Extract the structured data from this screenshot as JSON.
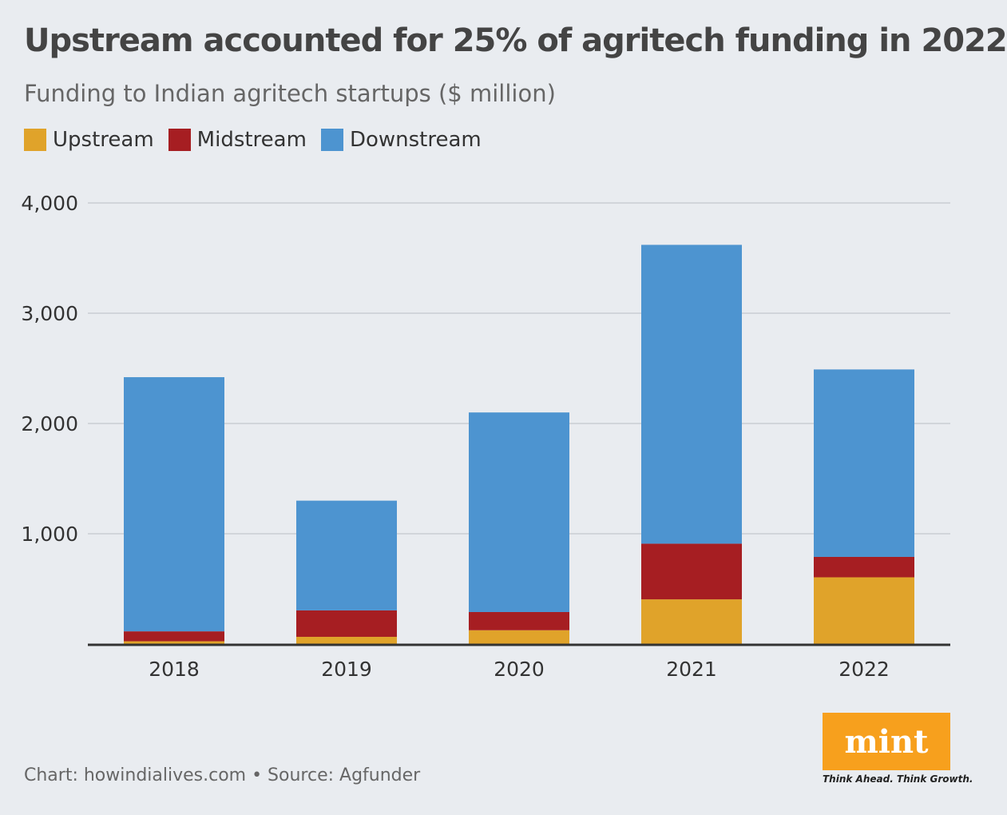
{
  "chart_data": {
    "type": "bar",
    "stacked": true,
    "title": "Upstream accounted for 25% of agritech funding in 2022",
    "subtitle": "Funding to Indian agritech startups ($ million)",
    "categories": [
      "2018",
      "2019",
      "2020",
      "2021",
      "2022"
    ],
    "series": [
      {
        "name": "Upstream",
        "color": "#e0a32a",
        "values": [
          25,
          65,
          125,
          405,
          605
        ]
      },
      {
        "name": "Midstream",
        "color": "#a61e22",
        "values": [
          90,
          240,
          165,
          505,
          185
        ]
      },
      {
        "name": "Downstream",
        "color": "#4d94d0",
        "values": [
          2305,
          995,
          1810,
          2710,
          1700
        ]
      }
    ],
    "ylim": [
      0,
      4000
    ],
    "yticks": [
      1000,
      2000,
      3000,
      4000
    ],
    "ytick_labels": [
      "1,000",
      "2,000",
      "3,000",
      "4,000"
    ],
    "grid": true,
    "legend_position": "top-left"
  },
  "footer": {
    "source": "Chart: howindialives.com • Source: Agfunder"
  },
  "logo": {
    "word": "mint",
    "tagline": "Think Ahead. Think Growth."
  }
}
